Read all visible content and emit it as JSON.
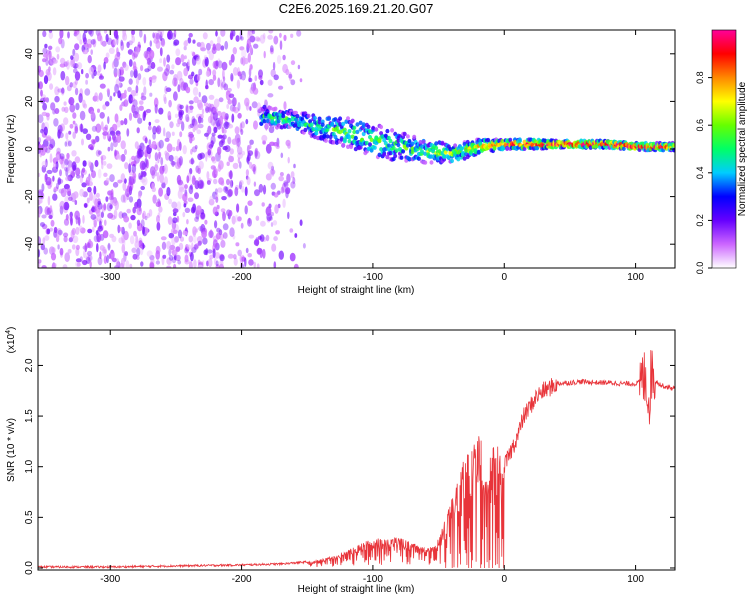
{
  "title": "C2E6.2025.169.21.20.G07",
  "colors": {
    "snr_line": "#e8343a",
    "axis": "#000000",
    "background": "#ffffff"
  },
  "chart_data": [
    {
      "type": "heatmap",
      "xlabel": "Height of straight line (km)",
      "ylabel": "Frequency (Hz)",
      "xlim": [
        -355,
        130
      ],
      "ylim": [
        -50,
        50
      ],
      "x_ticks": [
        -300,
        -200,
        -100,
        0,
        100
      ],
      "x_tick_labels": [
        "-300",
        "-200",
        "-100",
        "0",
        "100"
      ],
      "y_ticks": [
        -40,
        -20,
        0,
        20,
        40
      ],
      "y_tick_labels": [
        "-40",
        "-20",
        "0",
        "20",
        "40"
      ],
      "colorbar": {
        "label": "Normalized spectral amplitude",
        "range": [
          0,
          1
        ],
        "ticks": [
          0.0,
          0.2,
          0.4,
          0.6,
          0.8
        ],
        "tick_labels": [
          "0.0",
          "0.2",
          "0.4",
          "0.6",
          "0.8"
        ],
        "colormap": [
          "#ffffff",
          "#cc66ff",
          "#6600ff",
          "#0000ff",
          "#00ccff",
          "#00ff66",
          "#66ff00",
          "#ffff00",
          "#ff8800",
          "#ff0000",
          "#ff0099"
        ]
      },
      "noise_region": {
        "x": [
          -355,
          -150
        ],
        "y": [
          -50,
          50
        ]
      },
      "signal_ridge": {
        "x": [
          -185,
          -160,
          -140,
          -120,
          -100,
          -80,
          -60,
          -40,
          -20,
          0,
          20,
          40,
          60,
          80,
          100,
          125
        ],
        "y": [
          14,
          12,
          9,
          7,
          4,
          1,
          -1,
          -2,
          1,
          2,
          2,
          2,
          2,
          2,
          1,
          1
        ],
        "spread_hz": [
          4,
          4,
          5,
          6,
          7,
          6,
          5,
          4,
          3,
          2,
          2,
          1.5,
          1.5,
          1.5,
          1.5,
          1.5
        ],
        "amplitude": [
          0.45,
          0.5,
          0.5,
          0.55,
          0.55,
          0.5,
          0.55,
          0.6,
          0.75,
          0.9,
          0.95,
          0.95,
          1.0,
          1.0,
          0.95,
          0.9
        ]
      },
      "grid": false
    },
    {
      "type": "line",
      "xlabel": "Height of straight line (km)",
      "ylabel": "SNR (10 * v/v)",
      "y_multiplier_label": "(x10",
      "y_multiplier_exponent": "4",
      "y_multiplier_suffix": ")",
      "xlim": [
        -355,
        130
      ],
      "ylim": [
        -0.02,
        2.35
      ],
      "x_ticks": [
        -300,
        -200,
        -100,
        0,
        100
      ],
      "x_tick_labels": [
        "-300",
        "-200",
        "-100",
        "0",
        "100"
      ],
      "y_ticks": [
        0.0,
        0.5,
        1.0,
        1.5,
        2.0
      ],
      "y_tick_labels": [
        "0.0",
        "0.5",
        "1.0",
        "1.5",
        "2.0"
      ],
      "series": [
        {
          "x": [
            -355,
            -300,
            -250,
            -200,
            -170,
            -150,
            -130,
            -115,
            -100,
            -90,
            -80,
            -70,
            -60,
            -50,
            -45,
            -40,
            -35,
            -30,
            -25,
            -20,
            -15,
            -10,
            -5,
            0,
            5,
            10,
            15,
            20,
            25,
            30,
            35,
            40,
            50,
            60,
            70,
            80,
            90,
            100,
            105,
            108,
            110,
            112,
            115,
            120,
            130
          ],
          "y": [
            0.01,
            0.01,
            0.02,
            0.03,
            0.04,
            0.06,
            0.12,
            0.2,
            0.3,
            0.28,
            0.32,
            0.25,
            0.2,
            0.3,
            0.5,
            0.75,
            0.9,
            1.1,
            1.2,
            1.35,
            1.25,
            1.3,
            1.2,
            1.0,
            1.15,
            1.3,
            1.5,
            1.6,
            1.7,
            1.75,
            1.78,
            1.82,
            1.83,
            1.84,
            1.83,
            1.83,
            1.82,
            1.82,
            1.85,
            1.9,
            1.6,
            1.95,
            1.85,
            1.8,
            1.77
          ]
        }
      ],
      "grid": false
    }
  ]
}
